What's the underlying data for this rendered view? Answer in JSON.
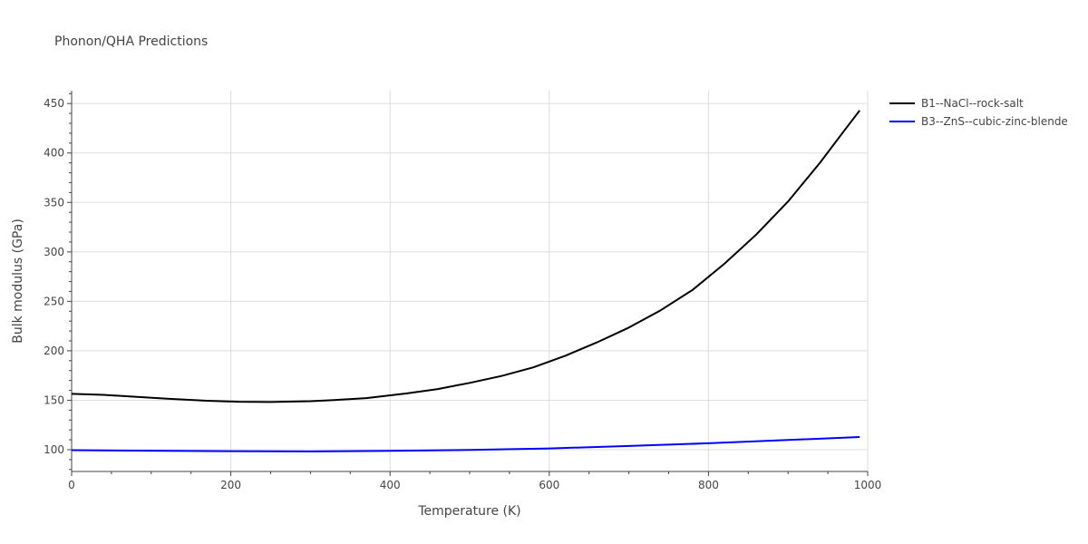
{
  "chart_data": {
    "type": "line",
    "title": "Phonon/QHA Predictions",
    "xlabel": "Temperature (K)",
    "ylabel": "Bulk modulus (GPa)",
    "xlim": [
      0,
      1000
    ],
    "ylim": [
      78,
      463
    ],
    "x_ticks": [
      0,
      200,
      400,
      600,
      800,
      1000
    ],
    "y_ticks": [
      100,
      150,
      200,
      250,
      300,
      350,
      400,
      450
    ],
    "grid": true,
    "legend_position": "top-right",
    "series": [
      {
        "name": "B1--NaCl--rock-salt",
        "color": "#000000",
        "x": [
          0,
          40,
          80,
          120,
          170,
          210,
          250,
          300,
          330,
          370,
          420,
          460,
          500,
          540,
          580,
          620,
          660,
          700,
          740,
          780,
          820,
          860,
          900,
          940,
          970,
          990
        ],
        "y": [
          156.5,
          155.5,
          153.5,
          151.5,
          149.5,
          148.5,
          148.2,
          149.0,
          150.2,
          152.2,
          156.8,
          161.3,
          167.6,
          174.5,
          183.2,
          195.0,
          208.5,
          223.5,
          241.0,
          261.5,
          288.0,
          317.5,
          351.0,
          390.0,
          422.0,
          443.0
        ]
      },
      {
        "name": "B3--ZnS--cubic-zinc-blende",
        "color": "#0000ff",
        "x": [
          0,
          100,
          200,
          300,
          400,
          500,
          600,
          700,
          800,
          900,
          990
        ],
        "y": [
          99.5,
          99.0,
          98.5,
          98.3,
          98.8,
          99.8,
          101.3,
          103.8,
          106.5,
          109.8,
          112.8
        ]
      }
    ]
  }
}
